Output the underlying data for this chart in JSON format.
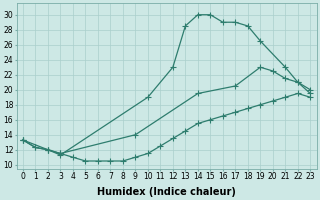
{
  "bg_color": "#cde8e5",
  "line_color": "#2e7d6e",
  "grid_color": "#aacfcc",
  "xlabel": "Humidex (Indice chaleur)",
  "xlabel_fontsize": 7,
  "tick_fontsize": 5.5,
  "ylim": [
    9.5,
    31.5
  ],
  "xlim": [
    -0.5,
    23.5
  ],
  "yticks": [
    10,
    12,
    14,
    16,
    18,
    20,
    22,
    24,
    26,
    28,
    30
  ],
  "xticks": [
    0,
    1,
    2,
    3,
    4,
    5,
    6,
    7,
    8,
    9,
    10,
    11,
    12,
    13,
    14,
    15,
    16,
    17,
    18,
    19,
    20,
    21,
    22,
    23
  ],
  "line1_x": [
    0,
    1,
    2,
    3,
    10,
    12,
    13,
    14,
    15,
    16,
    17,
    18,
    19,
    21,
    22,
    23
  ],
  "line1_y": [
    13.3,
    12.3,
    12.0,
    11.3,
    19.0,
    23.0,
    28.5,
    30.0,
    30.0,
    29.0,
    29.0,
    28.5,
    26.5,
    23.0,
    21.0,
    19.5
  ],
  "line2_x": [
    0,
    2,
    3,
    9,
    14,
    17,
    19,
    20,
    21,
    22,
    23
  ],
  "line2_y": [
    13.3,
    12.0,
    11.5,
    14.0,
    19.5,
    20.5,
    23.0,
    22.5,
    21.5,
    21.0,
    20.0
  ],
  "line3_x": [
    0,
    1,
    2,
    3,
    4,
    5,
    6,
    7,
    8,
    9,
    10,
    11,
    12,
    13,
    14,
    15,
    16,
    17,
    18,
    19,
    20,
    21,
    22,
    23
  ],
  "line3_y": [
    13.3,
    12.3,
    12.0,
    11.5,
    11.0,
    10.5,
    10.5,
    10.5,
    10.5,
    11.0,
    11.5,
    12.5,
    13.5,
    14.5,
    15.5,
    16.0,
    16.5,
    17.0,
    17.5,
    18.0,
    18.5,
    19.0,
    19.5,
    19.0
  ]
}
